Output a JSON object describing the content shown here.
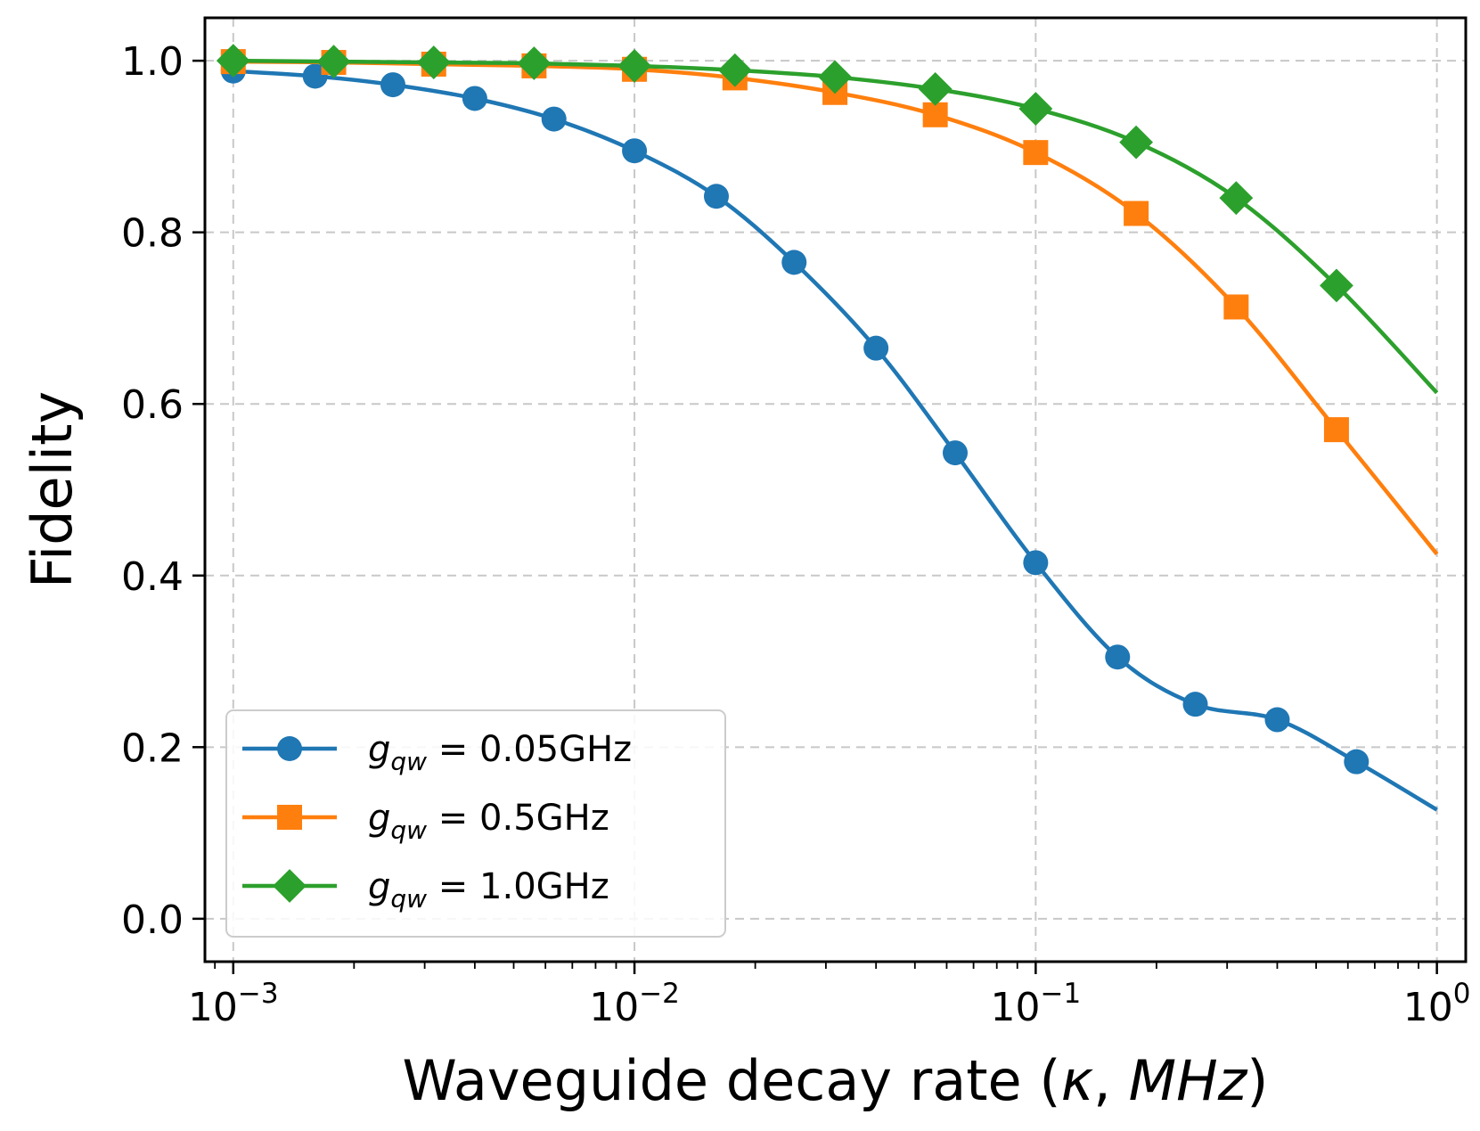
{
  "chart_data": {
    "type": "line",
    "xscale": "log",
    "xlim": [
      0.00085,
      1.18
    ],
    "ylim": [
      -0.05,
      1.05
    ],
    "xlabel": "Waveguide decay rate (κ, MHz)",
    "xlabel_parts": {
      "prefix": "Waveguide decay rate (",
      "symbol": "κ",
      "sep": ", ",
      "unit": "MHz",
      "suffix": ")"
    },
    "ylabel": "Fidelity",
    "grid": true,
    "legend_position": "lower-left",
    "x_ticks": [
      {
        "value": 0.001,
        "base": "10",
        "exp": "−3"
      },
      {
        "value": 0.01,
        "base": "10",
        "exp": "−2"
      },
      {
        "value": 0.1,
        "base": "10",
        "exp": "−1"
      },
      {
        "value": 1,
        "base": "10",
        "exp": "0"
      }
    ],
    "y_ticks": [
      {
        "value": 0.0,
        "label": "0.0"
      },
      {
        "value": 0.2,
        "label": "0.2"
      },
      {
        "value": 0.4,
        "label": "0.4"
      },
      {
        "value": 0.6,
        "label": "0.6"
      },
      {
        "value": 0.8,
        "label": "0.8"
      },
      {
        "value": 1.0,
        "label": "1.0"
      }
    ],
    "series": [
      {
        "name": "g_qw = 0.05GHz",
        "legend_sym": "g",
        "legend_sub": "qw",
        "legend_rest": " = 0.05GHz",
        "color": "#1f77b4",
        "marker": "circle",
        "x": [
          0.001,
          0.0016,
          0.0025,
          0.004,
          0.0063,
          0.01,
          0.016,
          0.025,
          0.04,
          0.063,
          0.1,
          0.16,
          0.25,
          0.4,
          0.63,
          1.0
        ],
        "y": [
          0.988,
          0.982,
          0.972,
          0.956,
          0.932,
          0.895,
          0.842,
          0.765,
          0.665,
          0.543,
          0.415,
          0.305,
          0.25,
          0.232,
          0.183,
          0.127
        ],
        "marker_x": [
          0.001,
          0.0016,
          0.0025,
          0.004,
          0.0063,
          0.01,
          0.016,
          0.025,
          0.04,
          0.063,
          0.1,
          0.16,
          0.25,
          0.4,
          0.63
        ],
        "marker_y": [
          0.988,
          0.982,
          0.972,
          0.956,
          0.932,
          0.895,
          0.842,
          0.765,
          0.665,
          0.543,
          0.415,
          0.305,
          0.25,
          0.232,
          0.183
        ]
      },
      {
        "name": "g_qw = 0.5GHz",
        "legend_sym": "g",
        "legend_sub": "qw",
        "legend_rest": " = 0.5GHz",
        "color": "#ff7f0e",
        "marker": "square",
        "x": [
          0.001,
          0.00178,
          0.00316,
          0.00562,
          0.01,
          0.0178,
          0.0316,
          0.0562,
          0.1,
          0.178,
          0.316,
          0.562,
          1.0
        ],
        "y": [
          0.999,
          0.998,
          0.996,
          0.994,
          0.99,
          0.98,
          0.963,
          0.937,
          0.893,
          0.822,
          0.713,
          0.57,
          0.425
        ],
        "marker_x": [
          0.001,
          0.00178,
          0.00316,
          0.00562,
          0.01,
          0.0178,
          0.0316,
          0.0562,
          0.1,
          0.178,
          0.316,
          0.562
        ],
        "marker_y": [
          0.999,
          0.998,
          0.996,
          0.994,
          0.99,
          0.98,
          0.963,
          0.937,
          0.893,
          0.822,
          0.713,
          0.57
        ]
      },
      {
        "name": "g_qw = 1.0GHz",
        "legend_sym": "g",
        "legend_sub": "qw",
        "legend_rest": " = 1.0GHz",
        "color": "#2ca02c",
        "marker": "diamond",
        "x": [
          0.001,
          0.00178,
          0.00316,
          0.00562,
          0.01,
          0.0178,
          0.0316,
          0.0562,
          0.1,
          0.178,
          0.316,
          0.562,
          1.0
        ],
        "y": [
          1.0,
          0.999,
          0.998,
          0.997,
          0.994,
          0.989,
          0.981,
          0.967,
          0.944,
          0.905,
          0.84,
          0.738,
          0.613
        ],
        "marker_x": [
          0.001,
          0.00178,
          0.00316,
          0.00562,
          0.01,
          0.0178,
          0.0316,
          0.0562,
          0.1,
          0.178,
          0.316,
          0.562
        ],
        "marker_y": [
          1.0,
          0.999,
          0.998,
          0.997,
          0.994,
          0.989,
          0.981,
          0.967,
          0.944,
          0.905,
          0.84,
          0.738
        ]
      }
    ]
  }
}
